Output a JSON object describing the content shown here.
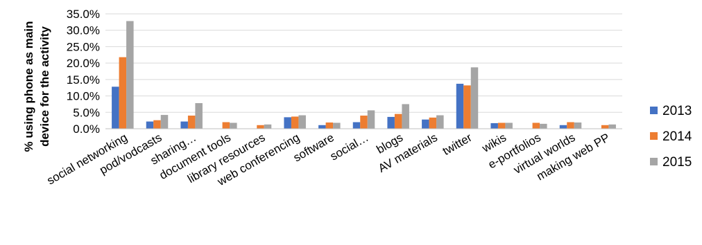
{
  "chart_data": {
    "type": "bar",
    "title": "",
    "xlabel": "",
    "ylabel_lines": [
      "% using  phone as main",
      "device for the activity"
    ],
    "ylim": [
      0,
      35
    ],
    "yticks": [
      "0.0%",
      "5.0%",
      "10.0%",
      "15.0%",
      "20.0%",
      "25.0%",
      "30.0%",
      "35.0%"
    ],
    "grid": true,
    "legend_position": "right",
    "categories": [
      "social networking",
      "pod/vodcasts",
      "sharing…",
      "document tools",
      "library resources",
      "web conferencing",
      "software",
      "social…",
      "blogs",
      "AV materials",
      "twitter",
      "wikis",
      "e-portfolios",
      "virtual worlds",
      "making web PP"
    ],
    "series": [
      {
        "name": "2013",
        "color": "#4472C4",
        "values": [
          12.8,
          2.2,
          2.2,
          0,
          0,
          3.5,
          1.1,
          2.0,
          3.6,
          2.8,
          13.7,
          1.7,
          0,
          1.1,
          0
        ]
      },
      {
        "name": "2014",
        "color": "#ED7D31",
        "values": [
          21.8,
          2.6,
          4.0,
          2.0,
          1.1,
          3.7,
          1.9,
          4.0,
          4.5,
          3.4,
          13.2,
          1.8,
          1.8,
          2.0,
          1.1
        ]
      },
      {
        "name": "2015",
        "color": "#A5A5A5",
        "values": [
          32.8,
          4.2,
          7.8,
          1.8,
          1.3,
          4.1,
          1.8,
          5.6,
          7.5,
          4.1,
          18.7,
          1.8,
          1.5,
          1.9,
          1.3
        ]
      }
    ]
  }
}
